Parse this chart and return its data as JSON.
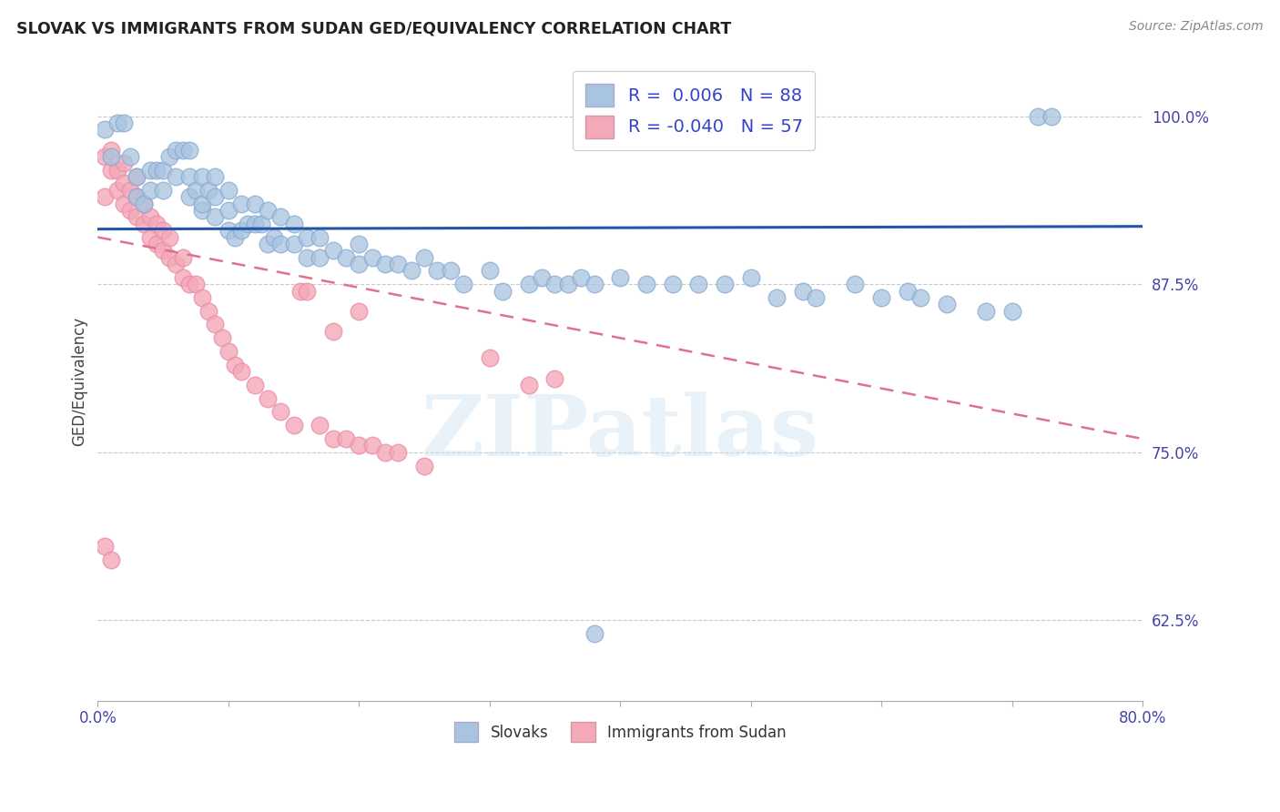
{
  "title": "SLOVAK VS IMMIGRANTS FROM SUDAN GED/EQUIVALENCY CORRELATION CHART",
  "source": "Source: ZipAtlas.com",
  "ylabel": "GED/Equivalency",
  "ytick_labels": [
    "100.0%",
    "87.5%",
    "75.0%",
    "62.5%"
  ],
  "ytick_values": [
    1.0,
    0.875,
    0.75,
    0.625
  ],
  "xmin": 0.0,
  "xmax": 0.8,
  "ymin": 0.565,
  "ymax": 1.04,
  "legend_slovak": "Slovaks",
  "legend_sudan": "Immigrants from Sudan",
  "R_slovak": "0.006",
  "N_slovak": "88",
  "R_sudan": "-0.040",
  "N_sudan": "57",
  "watermark": "ZIPatlas",
  "slovak_color": "#a8c4e0",
  "sudan_color": "#f4a8b8",
  "trend_slovak_color": "#2255aa",
  "trend_sudan_color": "#e07090",
  "trend_slovak_y0": 0.916,
  "trend_slovak_y1": 0.918,
  "trend_sudan_y0": 0.91,
  "trend_sudan_y1": 0.76,
  "slovak_scatter_x": [
    0.005,
    0.01,
    0.015,
    0.02,
    0.025,
    0.03,
    0.03,
    0.035,
    0.04,
    0.04,
    0.045,
    0.05,
    0.05,
    0.055,
    0.06,
    0.06,
    0.065,
    0.07,
    0.07,
    0.07,
    0.075,
    0.08,
    0.08,
    0.08,
    0.085,
    0.09,
    0.09,
    0.09,
    0.1,
    0.1,
    0.1,
    0.105,
    0.11,
    0.11,
    0.115,
    0.12,
    0.12,
    0.125,
    0.13,
    0.13,
    0.135,
    0.14,
    0.14,
    0.15,
    0.15,
    0.16,
    0.16,
    0.17,
    0.17,
    0.18,
    0.19,
    0.2,
    0.2,
    0.21,
    0.22,
    0.23,
    0.24,
    0.25,
    0.26,
    0.27,
    0.28,
    0.3,
    0.31,
    0.33,
    0.34,
    0.35,
    0.36,
    0.37,
    0.38,
    0.4,
    0.42,
    0.44,
    0.46,
    0.48,
    0.5,
    0.52,
    0.54,
    0.55,
    0.58,
    0.6,
    0.62,
    0.63,
    0.65,
    0.68,
    0.7,
    0.72,
    0.73,
    0.38
  ],
  "slovak_scatter_y": [
    0.99,
    0.97,
    0.995,
    0.995,
    0.97,
    0.955,
    0.94,
    0.935,
    0.96,
    0.945,
    0.96,
    0.96,
    0.945,
    0.97,
    0.975,
    0.955,
    0.975,
    0.975,
    0.955,
    0.94,
    0.945,
    0.93,
    0.935,
    0.955,
    0.945,
    0.955,
    0.94,
    0.925,
    0.945,
    0.93,
    0.915,
    0.91,
    0.935,
    0.915,
    0.92,
    0.935,
    0.92,
    0.92,
    0.93,
    0.905,
    0.91,
    0.925,
    0.905,
    0.92,
    0.905,
    0.91,
    0.895,
    0.91,
    0.895,
    0.9,
    0.895,
    0.905,
    0.89,
    0.895,
    0.89,
    0.89,
    0.885,
    0.895,
    0.885,
    0.885,
    0.875,
    0.885,
    0.87,
    0.875,
    0.88,
    0.875,
    0.875,
    0.88,
    0.875,
    0.88,
    0.875,
    0.875,
    0.875,
    0.875,
    0.88,
    0.865,
    0.87,
    0.865,
    0.875,
    0.865,
    0.87,
    0.865,
    0.86,
    0.855,
    0.855,
    1.0,
    1.0,
    0.615
  ],
  "sudan_scatter_x": [
    0.005,
    0.005,
    0.01,
    0.01,
    0.015,
    0.015,
    0.02,
    0.02,
    0.02,
    0.025,
    0.025,
    0.03,
    0.03,
    0.03,
    0.035,
    0.035,
    0.04,
    0.04,
    0.045,
    0.045,
    0.05,
    0.05,
    0.055,
    0.055,
    0.06,
    0.065,
    0.065,
    0.07,
    0.075,
    0.08,
    0.085,
    0.09,
    0.095,
    0.1,
    0.105,
    0.11,
    0.12,
    0.13,
    0.14,
    0.15,
    0.155,
    0.16,
    0.17,
    0.18,
    0.19,
    0.2,
    0.21,
    0.22,
    0.23,
    0.25,
    0.18,
    0.2,
    0.3,
    0.33,
    0.35,
    0.005,
    0.01
  ],
  "sudan_scatter_y": [
    0.94,
    0.97,
    0.96,
    0.975,
    0.945,
    0.96,
    0.935,
    0.95,
    0.965,
    0.93,
    0.945,
    0.925,
    0.94,
    0.955,
    0.92,
    0.935,
    0.91,
    0.925,
    0.905,
    0.92,
    0.9,
    0.915,
    0.895,
    0.91,
    0.89,
    0.88,
    0.895,
    0.875,
    0.875,
    0.865,
    0.855,
    0.845,
    0.835,
    0.825,
    0.815,
    0.81,
    0.8,
    0.79,
    0.78,
    0.77,
    0.87,
    0.87,
    0.77,
    0.76,
    0.76,
    0.755,
    0.755,
    0.75,
    0.75,
    0.74,
    0.84,
    0.855,
    0.82,
    0.8,
    0.805,
    0.68,
    0.67
  ]
}
